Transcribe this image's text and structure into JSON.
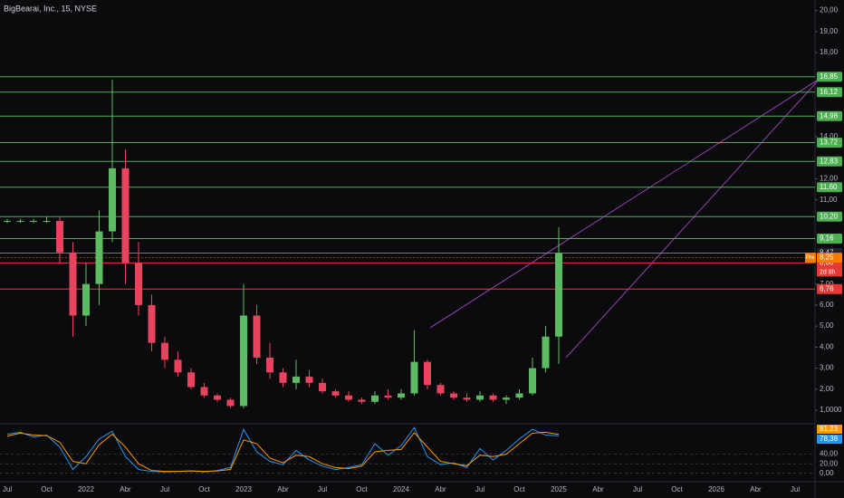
{
  "chart_data": {
    "type": "candlestick",
    "title": "BigBearai, Inc., 15, NYSE",
    "categories": [
      "Jul",
      null,
      null,
      "Oct",
      null,
      null,
      "2022",
      null,
      null,
      "Abr",
      null,
      null,
      "Jul",
      null,
      null,
      "Oct",
      null,
      null,
      "2023",
      null,
      null,
      "Abr",
      null,
      null,
      "Jul",
      null,
      null,
      "Oct",
      null,
      null,
      "2024",
      null,
      null,
      "Abr",
      null,
      null,
      "Jul",
      null,
      null,
      "Oct",
      null,
      null,
      "2025",
      null,
      null,
      "Abr",
      null,
      null,
      "Jul",
      null,
      null,
      "Oct",
      null,
      null,
      "2026",
      null,
      null,
      "Abr",
      null,
      null,
      "Jul"
    ],
    "open": [
      10.0,
      10.0,
      10.0,
      10.0,
      10.0,
      8.5,
      5.5,
      7.0,
      9.5,
      12.5,
      8.0,
      6.0,
      4.2,
      3.4,
      2.8,
      2.1,
      1.7,
      1.5,
      1.2,
      5.5,
      3.5,
      2.8,
      2.3,
      2.6,
      2.3,
      1.9,
      1.7,
      1.5,
      1.4,
      1.7,
      1.6,
      1.8,
      3.3,
      2.2,
      1.8,
      1.6,
      1.5,
      1.7,
      1.5,
      1.6,
      1.8,
      3.0,
      4.5,
      null,
      null,
      null,
      null,
      null,
      null,
      null,
      null,
      null,
      null,
      null,
      null,
      null,
      null,
      null,
      null,
      null,
      null
    ],
    "high": [
      10.1,
      10.1,
      10.1,
      10.2,
      10.2,
      9.0,
      8.0,
      10.5,
      16.7,
      13.4,
      9.0,
      6.5,
      4.5,
      3.8,
      3.0,
      2.3,
      1.8,
      1.6,
      7.0,
      6.0,
      4.2,
      3.0,
      3.4,
      2.9,
      2.5,
      2.0,
      1.9,
      1.6,
      1.9,
      2.0,
      2.0,
      4.8,
      3.4,
      2.3,
      1.9,
      1.8,
      1.9,
      1.8,
      1.7,
      2.0,
      3.5,
      5.0,
      9.7,
      null,
      null,
      null,
      null,
      null,
      null,
      null,
      null,
      null,
      null,
      null,
      null,
      null,
      null,
      null,
      null,
      null,
      null
    ],
    "low": [
      9.9,
      9.9,
      9.9,
      9.9,
      8.0,
      4.5,
      5.0,
      6.0,
      9.0,
      7.0,
      5.5,
      3.8,
      3.0,
      2.6,
      2.0,
      1.6,
      1.4,
      1.1,
      1.1,
      3.2,
      2.5,
      2.1,
      2.0,
      2.1,
      1.8,
      1.6,
      1.4,
      1.3,
      1.3,
      1.5,
      1.5,
      1.7,
      2.0,
      1.7,
      1.5,
      1.4,
      1.4,
      1.4,
      1.3,
      1.5,
      1.7,
      2.8,
      3.2,
      null,
      null,
      null,
      null,
      null,
      null,
      null,
      null,
      null,
      null,
      null,
      null,
      null,
      null,
      null,
      null,
      null,
      null
    ],
    "close": [
      10.0,
      10.0,
      10.0,
      10.0,
      8.5,
      5.5,
      7.0,
      9.5,
      12.5,
      8.0,
      6.0,
      4.2,
      3.4,
      2.8,
      2.1,
      1.7,
      1.5,
      1.2,
      5.5,
      3.5,
      2.8,
      2.3,
      2.6,
      2.3,
      1.9,
      1.7,
      1.5,
      1.4,
      1.7,
      1.6,
      1.8,
      3.3,
      2.2,
      1.8,
      1.6,
      1.5,
      1.7,
      1.5,
      1.6,
      1.8,
      3.0,
      4.5,
      8.47,
      null,
      null,
      null,
      null,
      null,
      null,
      null,
      null,
      null,
      null,
      null,
      null,
      null,
      null,
      null,
      null,
      null,
      null
    ],
    "up_color": "#5dbb63",
    "down_color": "#e8445f",
    "ylim": [
      0.4,
      20.5
    ],
    "yticks": [
      {
        "value": 20,
        "label": "20,00"
      },
      {
        "value": 19,
        "label": "19,00"
      },
      {
        "value": 18,
        "label": "18,00"
      },
      {
        "value": 14,
        "label": "14,00"
      },
      {
        "value": 12,
        "label": "12,00"
      },
      {
        "value": 11,
        "label": "11,00"
      },
      {
        "value": 7,
        "label": "7,00"
      },
      {
        "value": 6,
        "label": "6,00"
      },
      {
        "value": 5,
        "label": "5,00"
      },
      {
        "value": 4,
        "label": "4,00"
      },
      {
        "value": 3,
        "label": "3,00"
      },
      {
        "value": 2,
        "label": "2,00"
      },
      {
        "value": 1,
        "label": "1,0000"
      }
    ],
    "levels": [
      {
        "value": 16.85,
        "label": "16,85",
        "color": "#4caf50"
      },
      {
        "value": 16.12,
        "label": "16,12",
        "color": "#4caf50"
      },
      {
        "value": 14.98,
        "label": "14,98",
        "color": "#4caf50"
      },
      {
        "value": 13.72,
        "label": "13,72",
        "color": "#4caf50"
      },
      {
        "value": 12.83,
        "label": "12,83",
        "color": "#4caf50"
      },
      {
        "value": 11.6,
        "label": "11,60",
        "color": "#4caf50"
      },
      {
        "value": 10.2,
        "label": "10,20",
        "color": "#4caf50"
      },
      {
        "value": 9.16,
        "label": "9,16",
        "color": "#4caf50"
      },
      {
        "value": 8.0,
        "label": "8,00",
        "color": "#e53935"
      },
      {
        "value": 6.76,
        "label": "6,76",
        "color": "#e53935"
      }
    ],
    "last_price": {
      "value": 8.47,
      "label": "8,47",
      "color": "#9598a1"
    },
    "premarket": {
      "tag": "Pre",
      "value": 8.25,
      "label": "8,25",
      "color": "#f57c00"
    },
    "countdown": "2d 8h",
    "oscillator": {
      "ylim": [
        -10,
        100
      ],
      "yticks": [
        {
          "value": 40,
          "label": "40,00"
        },
        {
          "value": 20,
          "label": "20,00"
        },
        {
          "value": 0,
          "label": "0,00"
        }
      ],
      "series": [
        {
          "color": "#2196f3",
          "values": [
            82,
            86,
            76,
            80,
            55,
            8,
            35,
            72,
            88,
            35,
            8,
            4,
            3,
            4,
            5,
            3,
            6,
            12,
            92,
            45,
            25,
            18,
            48,
            28,
            15,
            8,
            12,
            18,
            62,
            38,
            58,
            96,
            35,
            18,
            22,
            12,
            52,
            28,
            48,
            72,
            92,
            80,
            78.38,
            null,
            null,
            null,
            null,
            null,
            null,
            null,
            null,
            null,
            null,
            null,
            null,
            null,
            null,
            null,
            null,
            null,
            null
          ],
          "last_label": "78,38"
        },
        {
          "color": "#ff9800",
          "values": [
            78,
            84,
            80,
            79,
            65,
            25,
            20,
            60,
            82,
            55,
            20,
            6,
            4,
            4,
            5,
            4,
            5,
            8,
            70,
            62,
            32,
            22,
            38,
            35,
            20,
            12,
            10,
            15,
            45,
            48,
            50,
            85,
            55,
            25,
            20,
            16,
            38,
            35,
            40,
            62,
            84,
            86,
            81.23,
            null,
            null,
            null,
            null,
            null,
            null,
            null,
            null,
            null,
            null,
            null,
            null,
            null,
            null,
            null,
            null,
            null,
            null
          ],
          "last_label": "81,23"
        }
      ]
    }
  }
}
